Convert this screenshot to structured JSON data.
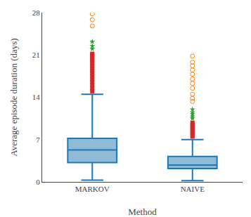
{
  "chart_data": {
    "type": "box",
    "xlabel": "Method",
    "ylabel": "Average episode duration (days)",
    "categories": [
      "MARKOV",
      "NAIVE"
    ],
    "q1": [
      3.2,
      2.2
    ],
    "median": [
      5.3,
      2.8
    ],
    "q3": [
      7.2,
      4.2
    ],
    "whislo": [
      0.3,
      0.2
    ],
    "whishi": [
      14.5,
      7.0
    ],
    "fliers": [
      {
        "marker": "circle-open",
        "values": [
          [
            27.8,
            26.8,
            25.8
          ],
          [
            20.8,
            19.8,
            19.2,
            18.5,
            17.8,
            17.0,
            16.3,
            15.5,
            14.5,
            13.8,
            13.3
          ]
        ]
      },
      {
        "marker": "star",
        "values": [
          [
            23.2,
            22.5,
            22.0
          ],
          [
            12.0,
            11.5,
            11.2,
            10.8,
            10.5
          ]
        ]
      },
      {
        "marker": "square",
        "values": [
          [
            21.2,
            21.0,
            20.7,
            20.3,
            20.0,
            19.6,
            19.2,
            18.8,
            18.4,
            18.0,
            17.5,
            17.0,
            16.5,
            16.0,
            15.5,
            15.0
          ],
          [
            9.8,
            9.5,
            9.2,
            8.8,
            8.5,
            8.2,
            7.8,
            7.5
          ]
        ]
      }
    ],
    "ylim": [
      0,
      28
    ],
    "yticks": [
      0,
      7,
      14,
      21,
      28
    ],
    "grid": false
  }
}
